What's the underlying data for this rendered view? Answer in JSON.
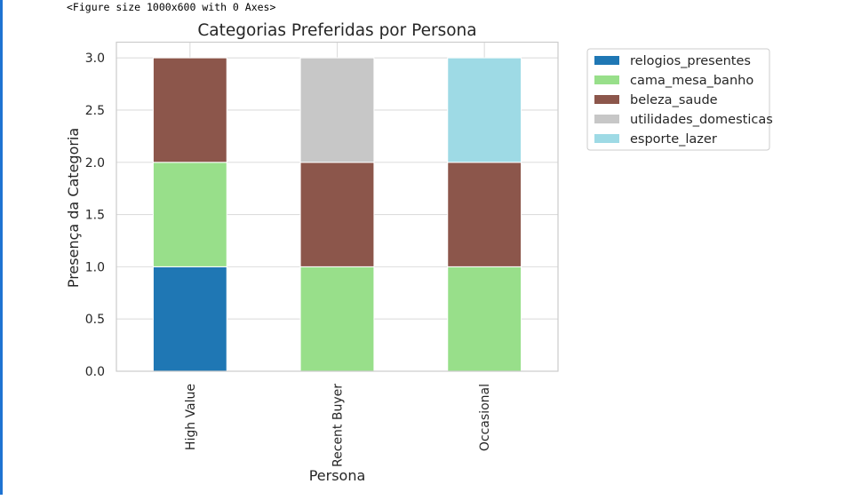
{
  "notebook": {
    "output_text": "<Figure size 1000x600 with 0 Axes>"
  },
  "chart_data": {
    "type": "bar",
    "stacked": true,
    "title": "Categorias Preferidas por Persona",
    "xlabel": "Persona",
    "ylabel": "Presença da Categoria",
    "categories": [
      "High Value",
      "Recent Buyer",
      "Occasional"
    ],
    "ylim": [
      0,
      3.15
    ],
    "yticks": [
      "0.0",
      "0.5",
      "1.0",
      "1.5",
      "2.0",
      "2.5",
      "3.0"
    ],
    "grid": true,
    "legend_position": "outside top-right",
    "series": [
      {
        "name": "relogios_presentes",
        "color": "#1f77b4",
        "values": [
          1,
          0,
          0
        ]
      },
      {
        "name": "cama_mesa_banho",
        "color": "#98df8a",
        "values": [
          1,
          1,
          1
        ]
      },
      {
        "name": "beleza_saude",
        "color": "#8c564b",
        "values": [
          1,
          1,
          1
        ]
      },
      {
        "name": "utilidades_domesticas",
        "color": "#c7c7c7",
        "values": [
          0,
          1,
          0
        ]
      },
      {
        "name": "esporte_lazer",
        "color": "#9edae5",
        "values": [
          0,
          0,
          1
        ]
      }
    ]
  }
}
